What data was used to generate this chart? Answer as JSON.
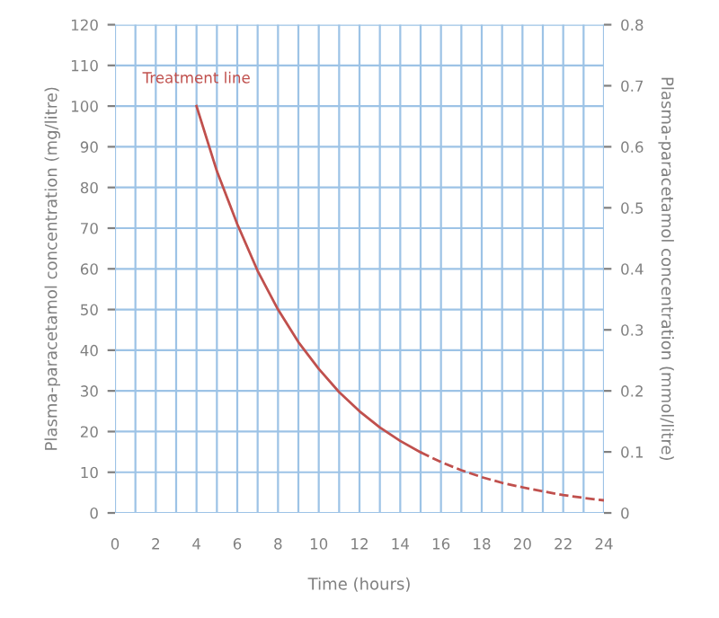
{
  "chart_data": {
    "type": "line",
    "xlabel": "Time (hours)",
    "ylabel": "Plasma-paracetamol concentration (mg/litre)",
    "y2label": "Plasma-paracetamol concentration (mmol/litre)",
    "series": [
      {
        "color": "#c0504d",
        "line_style": "solid",
        "x": [
          4,
          5,
          6,
          7,
          8,
          9,
          10,
          11,
          12,
          13,
          14,
          15
        ],
        "values": [
          100,
          84,
          71,
          59.5,
          50,
          42,
          35.4,
          29.7,
          25,
          21,
          17.7,
          14.9
        ]
      },
      {
        "color": "#c0504d",
        "line_style": "dashed",
        "x": [
          15,
          16,
          17,
          18,
          19,
          20,
          21,
          22,
          23,
          24
        ],
        "values": [
          14.9,
          12.5,
          10.5,
          8.8,
          7.4,
          6.3,
          5.3,
          4.4,
          3.7,
          3.1
        ]
      }
    ],
    "annotations": [
      {
        "text": "Treatment line",
        "x": 4,
        "y": 100
      }
    ],
    "xlim": [
      0,
      24
    ],
    "xticks": [
      0,
      2,
      4,
      6,
      8,
      10,
      12,
      14,
      16,
      18,
      20,
      22,
      24
    ],
    "ylim": [
      0,
      120
    ],
    "yticks": [
      0,
      10,
      20,
      30,
      40,
      50,
      60,
      70,
      80,
      90,
      100,
      110,
      120
    ],
    "y2lim": [
      0,
      0.8
    ],
    "y2ticks": [
      0,
      0.1,
      0.2,
      0.3,
      0.4,
      0.5,
      0.6,
      0.7,
      0.8
    ],
    "grid": true,
    "legend": false
  }
}
